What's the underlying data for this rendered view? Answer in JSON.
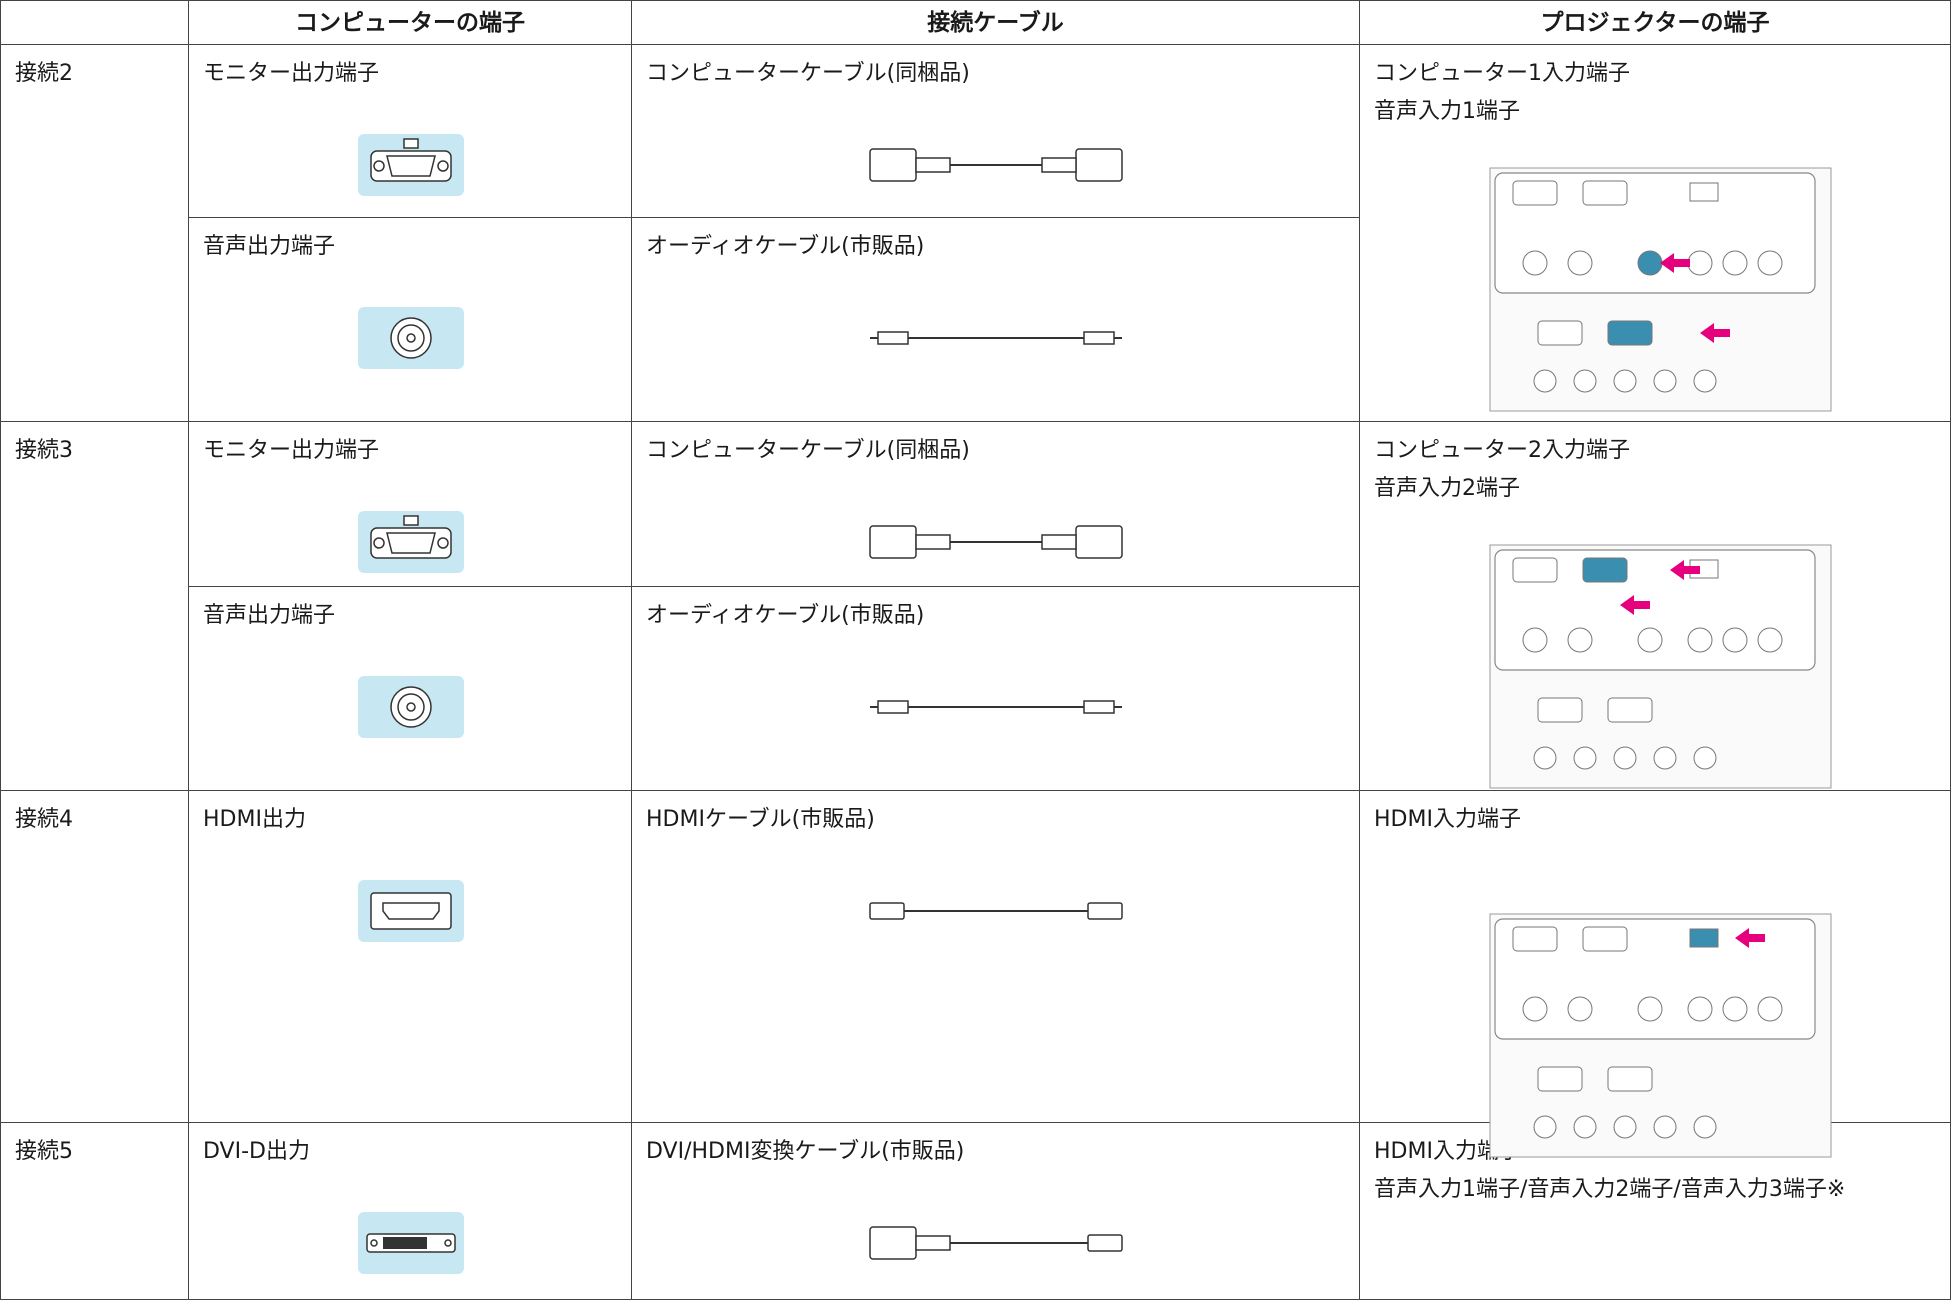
{
  "header": [
    "",
    "コンピューターの端子",
    "接続ケーブル",
    "プロジェクターの端子"
  ],
  "rows": [
    {
      "label": "接続2",
      "items": [
        {
          "computer": "モニター出力端子",
          "cable": "コンピューターケーブル(同梱品)"
        },
        {
          "computer": "音声出力端子",
          "cable": "オーディオケーブル(市販品)"
        }
      ],
      "projector": [
        "コンピューター1入力端子",
        "音声入力1端子"
      ]
    },
    {
      "label": "接続3",
      "items": [
        {
          "computer": "モニター出力端子",
          "cable": "コンピューターケーブル(同梱品)"
        },
        {
          "computer": "音声出力端子",
          "cable": "オーディオケーブル(市販品)"
        }
      ],
      "projector": [
        "コンピューター2入力端子",
        "音声入力2端子"
      ]
    },
    {
      "label": "接続4",
      "items": [
        {
          "computer": "HDMI出力",
          "cable": "HDMIケーブル(市販品)"
        }
      ],
      "projector": [
        "HDMI入力端子"
      ]
    },
    {
      "label": "接続5",
      "items": [
        {
          "computer": "DVI-D出力",
          "cable": "DVI/HDMI変換ケーブル(市販品)"
        }
      ],
      "projector": [
        "HDMI入力端子",
        "音声入力1端子/音声入力2端子/音声入力3端子※"
      ]
    }
  ]
}
